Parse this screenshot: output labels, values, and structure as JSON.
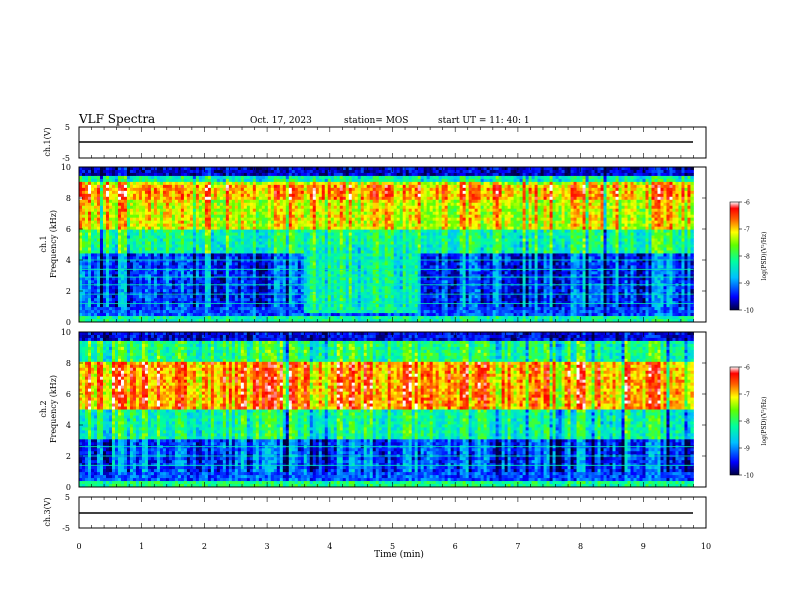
{
  "header": {
    "title": "VLF Spectra",
    "date": "Oct. 17, 2023",
    "station": "station= MOS",
    "start": "start  UT  =   11: 40: 1"
  },
  "chart_data": [
    {
      "type": "line",
      "panel": "ch1-voltage",
      "ylabel": "ch.1(V)",
      "ylim": [
        -5,
        5
      ],
      "yticks": [
        "5",
        "-5"
      ],
      "series": [
        {
          "x": [
            0,
            9.8
          ],
          "values": [
            0,
            0
          ]
        }
      ]
    },
    {
      "type": "heatmap",
      "panel": "ch1-spectrogram",
      "ylabel_channel": "ch.1",
      "ylabel": "Frequency (kHz)",
      "xlim": [
        0,
        10
      ],
      "ylim": [
        0,
        10
      ],
      "yticks": [
        "0",
        "2",
        "4",
        "6",
        "8",
        "10"
      ],
      "data_extent_min": 9.8,
      "colorbar": {
        "label": "log(PSD)(V²/Hz)",
        "range": [
          -10,
          -6
        ],
        "ticks": [
          "-6",
          "-7",
          "-8",
          "-9",
          "-10"
        ]
      },
      "features": {
        "intense_band_khz": [
          6,
          9
        ],
        "broadband_burst_min": [
          3.6,
          5.4
        ],
        "burst_freq_khz": [
          0.5,
          5
        ]
      }
    },
    {
      "type": "heatmap",
      "panel": "ch2-spectrogram",
      "ylabel_channel": "ch.2",
      "ylabel": "Frequency (kHz)",
      "xlim": [
        0,
        10
      ],
      "ylim": [
        0,
        10
      ],
      "yticks": [
        "0",
        "2",
        "4",
        "6",
        "8",
        "10"
      ],
      "data_extent_min": 9.8,
      "colorbar": {
        "label": "log(PSD)(V²/Hz)",
        "range": [
          -10,
          -6
        ],
        "ticks": [
          "-6",
          "-7",
          "-8",
          "-9",
          "-10"
        ]
      },
      "features": {
        "intense_band_khz": [
          5,
          8
        ]
      }
    },
    {
      "type": "line",
      "panel": "ch3-voltage",
      "ylabel": "ch.3(V)",
      "ylim": [
        -5,
        5
      ],
      "yticks": [
        "5",
        "-5"
      ],
      "xlabel": "Time (min)",
      "xticks": [
        "0",
        "1",
        "2",
        "3",
        "4",
        "5",
        "6",
        "7",
        "8",
        "9",
        "10"
      ],
      "series": [
        {
          "x": [
            0,
            9.8
          ],
          "values": [
            -1,
            -1
          ]
        }
      ]
    }
  ],
  "colors": {
    "scale": [
      "#000080",
      "#0000ff",
      "#0080ff",
      "#00ffff",
      "#00ff80",
      "#80ff00",
      "#ffff00",
      "#ff8000",
      "#ff0000",
      "#ffffff"
    ]
  }
}
